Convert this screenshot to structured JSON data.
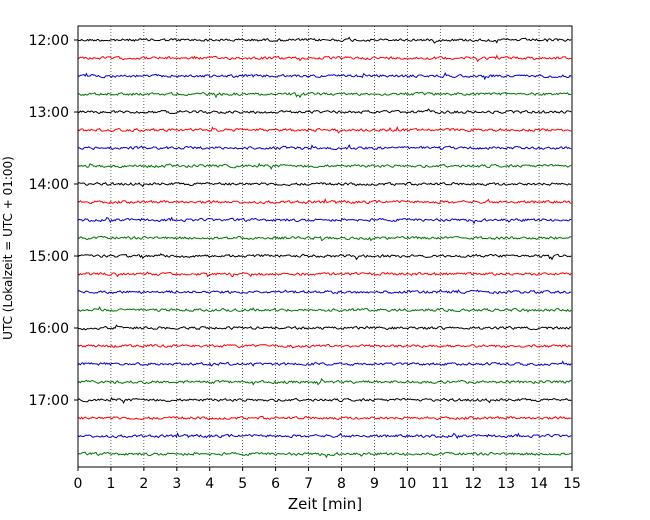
{
  "chart_data": {
    "type": "line",
    "title": "",
    "xlabel": "Zeit  [min]",
    "ylabel": "UTC (Lokalzeit = UTC + 01:00)",
    "xlim": [
      0,
      15
    ],
    "x_ticks": [
      0,
      1,
      2,
      3,
      4,
      5,
      6,
      7,
      8,
      9,
      10,
      11,
      12,
      13,
      14,
      15
    ],
    "y_tick_labels": [
      "12:00",
      "13:00",
      "14:00",
      "15:00",
      "16:00",
      "17:00"
    ],
    "y_tick_trace_index": [
      0,
      4,
      8,
      12,
      16,
      20
    ],
    "grid": "vertical dotted",
    "trace_start": "12:00",
    "trace_interval_min": 15,
    "trace_count": 24,
    "trace_colors": [
      "#000000",
      "#ff0000",
      "#0000cc",
      "#007700"
    ]
  }
}
